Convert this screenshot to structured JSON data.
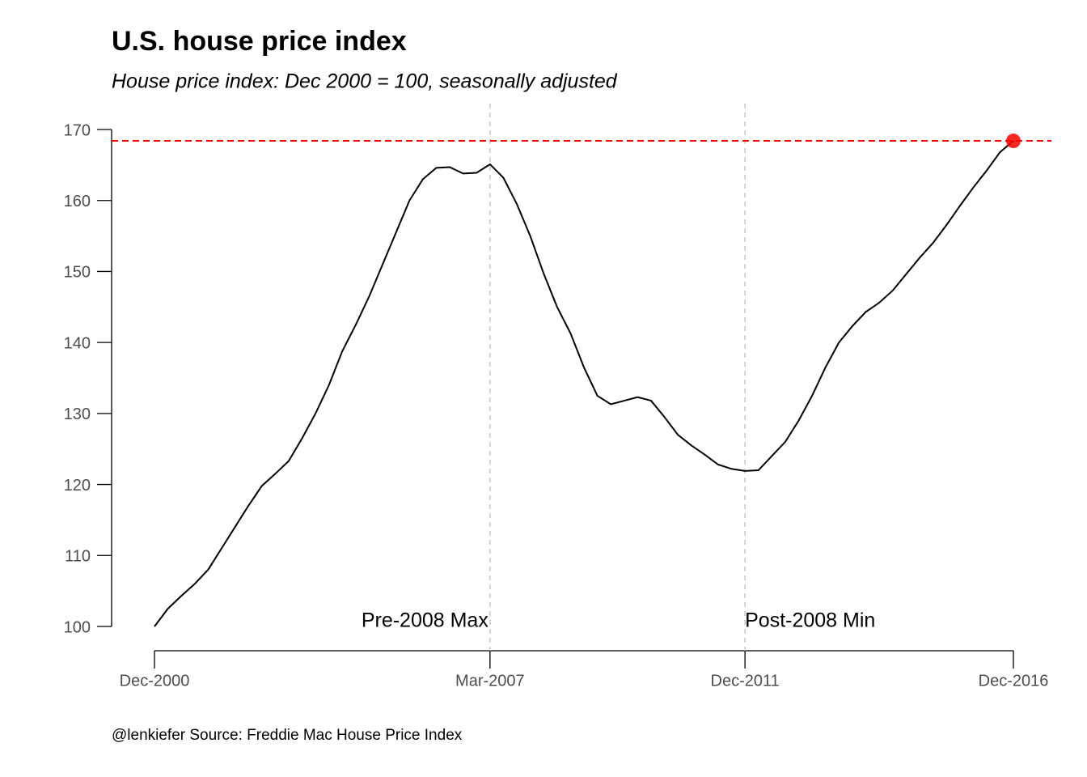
{
  "chart_data": {
    "type": "line",
    "title": "U.S. house price index",
    "subtitle": "House price index: Dec 2000 = 100, seasonally adjusted",
    "caption": "@lenkiefer Source: Freddie Mac House Price Index",
    "x": [
      "2000-12",
      "2001-03",
      "2001-06",
      "2001-09",
      "2001-12",
      "2002-03",
      "2002-06",
      "2002-09",
      "2002-12",
      "2003-03",
      "2003-06",
      "2003-09",
      "2003-12",
      "2004-03",
      "2004-06",
      "2004-09",
      "2004-12",
      "2005-03",
      "2005-06",
      "2005-09",
      "2005-12",
      "2006-03",
      "2006-06",
      "2006-09",
      "2006-12",
      "2007-03",
      "2007-06",
      "2007-09",
      "2007-12",
      "2008-03",
      "2008-06",
      "2008-09",
      "2008-12",
      "2009-03",
      "2009-06",
      "2009-09",
      "2009-12",
      "2010-03",
      "2010-06",
      "2010-09",
      "2010-12",
      "2011-03",
      "2011-06",
      "2011-09",
      "2011-12",
      "2012-03",
      "2012-06",
      "2012-09",
      "2012-12",
      "2013-03",
      "2013-06",
      "2013-09",
      "2013-12",
      "2014-03",
      "2014-06",
      "2014-09",
      "2014-12",
      "2015-03",
      "2015-06",
      "2015-09",
      "2015-12",
      "2016-03",
      "2016-06",
      "2016-09",
      "2016-12"
    ],
    "series": [
      {
        "color": "#000000",
        "values": [
          100,
          102.5,
          104.3,
          106,
          108,
          111,
          114,
          117,
          119.8,
          121.5,
          123.3,
          126.5,
          130,
          134,
          138.8,
          142.5,
          146.5,
          151,
          155.5,
          160,
          163,
          164.6,
          164.7,
          163.8,
          163.9,
          165.1,
          163.2,
          159.5,
          155,
          149.7,
          145,
          141.3,
          136.5,
          132.5,
          131.3,
          131.8,
          132.3,
          131.8,
          129.5,
          127,
          125.5,
          124.2,
          122.8,
          122.2,
          121.9,
          122,
          124,
          126,
          129,
          132.5,
          136.5,
          140,
          142.3,
          144.3,
          145.6,
          147.3,
          149.6,
          151.9,
          154,
          156.5,
          159.2,
          161.8,
          164.2,
          166.8,
          168.4
        ]
      }
    ],
    "highlight_color": "#ff0000",
    "annotations": [
      {
        "x": "2007-03",
        "label": "Pre-2008 Max"
      },
      {
        "x": "2011-12",
        "label": "Post-2008 Min"
      }
    ],
    "xlim": [
      "2000-12",
      "2016-12"
    ],
    "xticks": [
      {
        "value": "2000-12",
        "label": "Dec-2000"
      },
      {
        "value": "2007-03",
        "label": "Mar-2007"
      },
      {
        "value": "2011-12",
        "label": "Dec-2011"
      },
      {
        "value": "2016-12",
        "label": "Dec-2016"
      }
    ],
    "ylim": [
      100,
      170
    ],
    "yticks": [
      100,
      110,
      120,
      130,
      140,
      150,
      160,
      170
    ]
  }
}
